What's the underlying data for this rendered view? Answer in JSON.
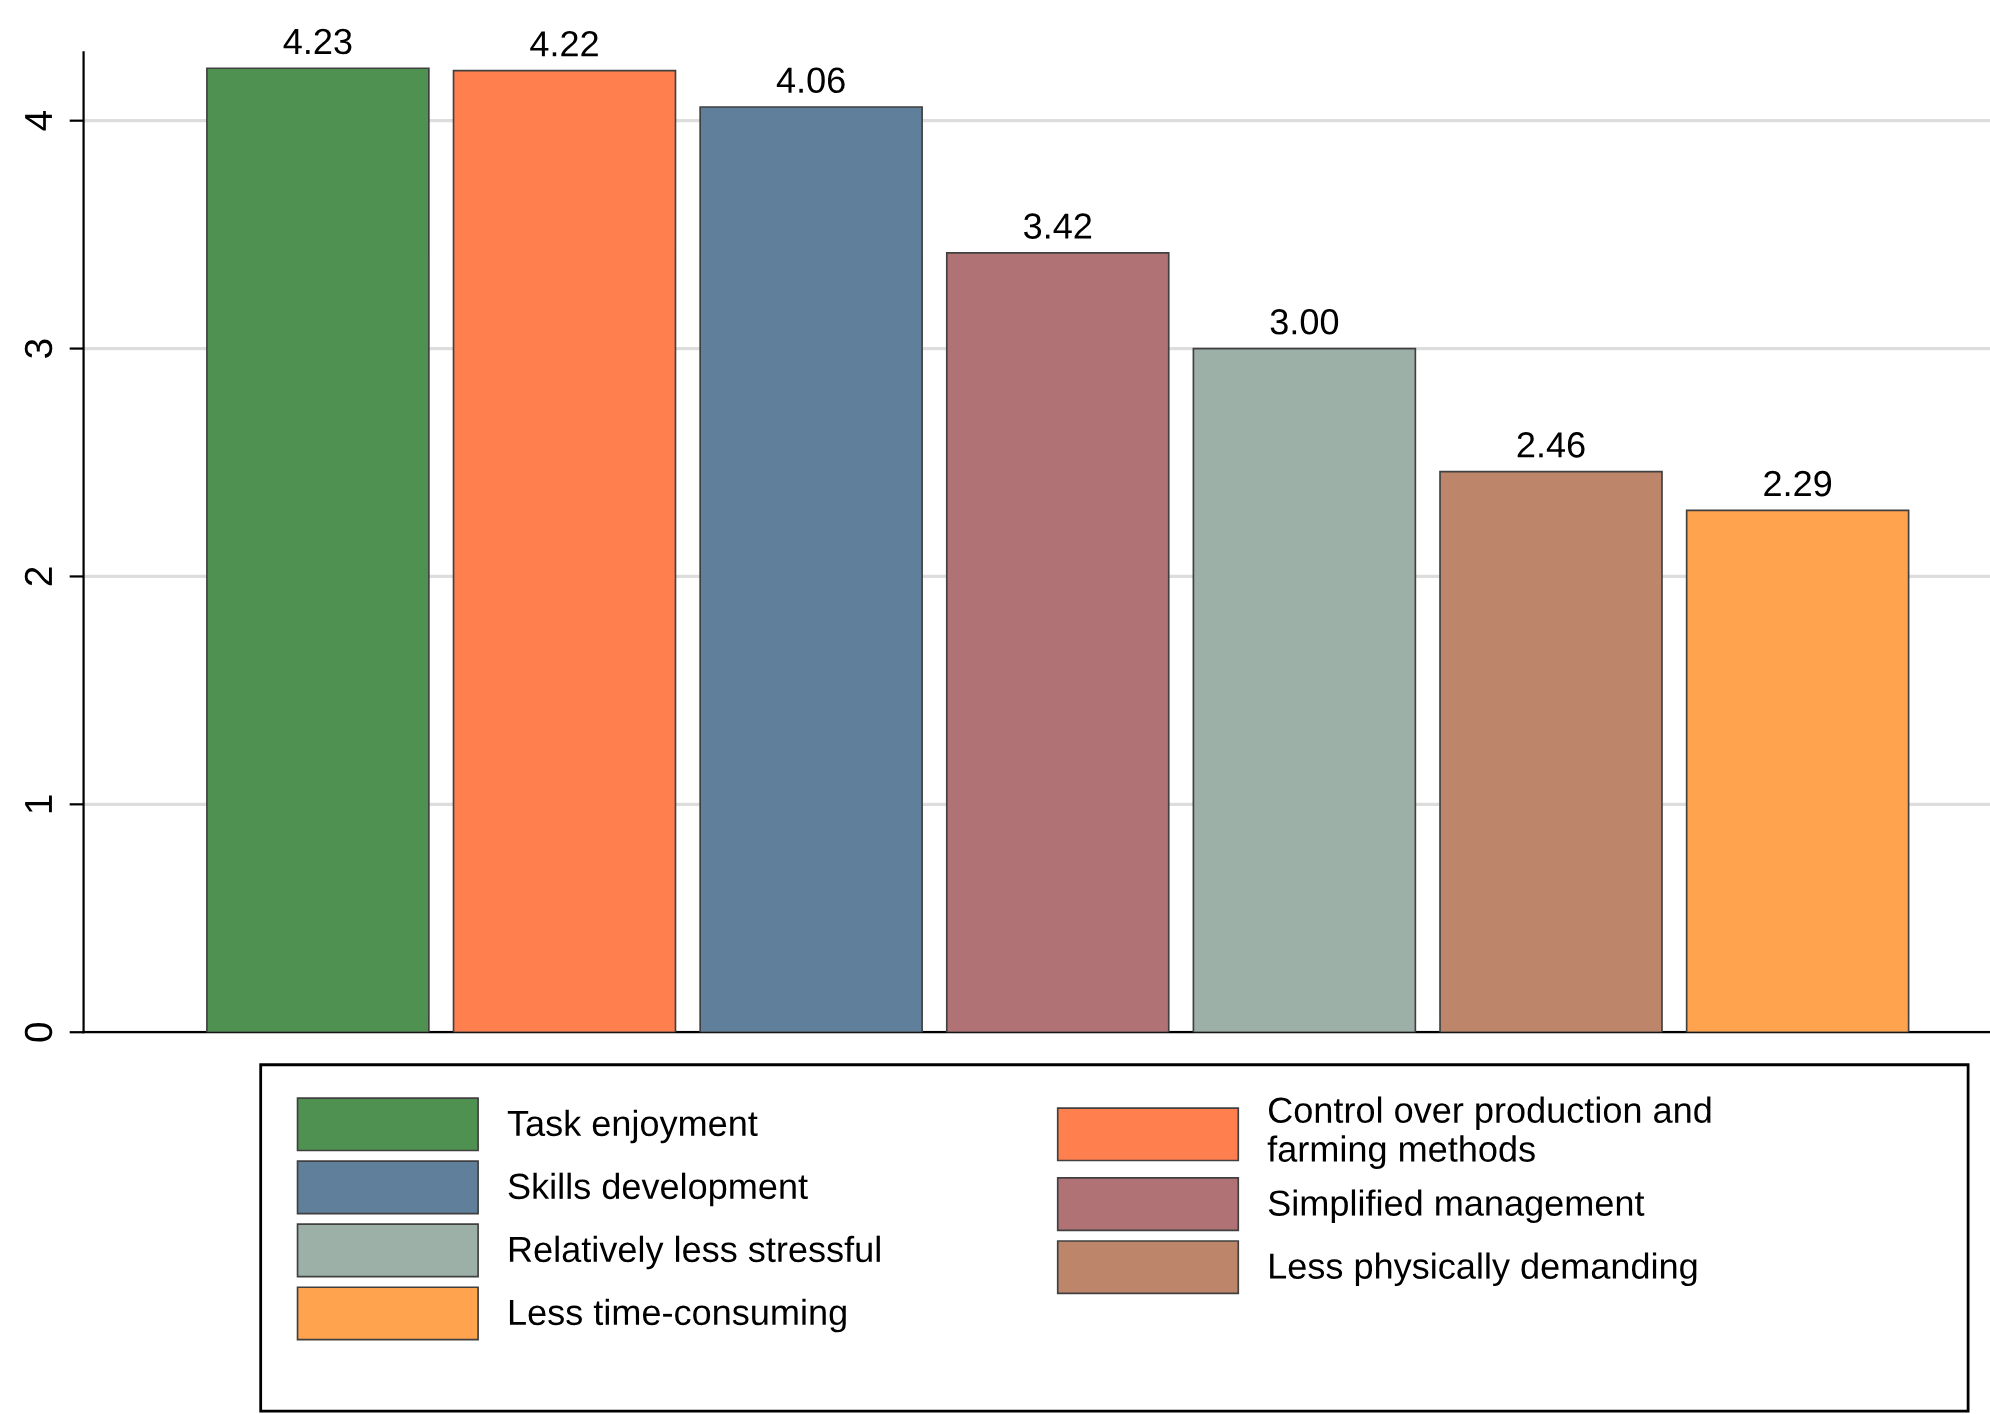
{
  "chart_data": {
    "type": "bar",
    "stacked": true,
    "categories": [
      null,
      null,
      null,
      null,
      null,
      null,
      null
    ],
    "series": [
      {
        "name": "Task enjoyment",
        "color": "#4e9150",
        "values": [
          4.23,
          null,
          null,
          null,
          null,
          null,
          null
        ]
      },
      {
        "name": "Control over production and\nfarming methods",
        "color": "#ff7f4f",
        "values": [
          null,
          4.22,
          null,
          null,
          null,
          null,
          null
        ]
      },
      {
        "name": "Skills development",
        "color": "#5f7f9b",
        "values": [
          null,
          null,
          4.06,
          null,
          null,
          null,
          null
        ]
      },
      {
        "name": "Simplified management",
        "color": "#b07274",
        "values": [
          null,
          null,
          null,
          3.42,
          null,
          null,
          null
        ]
      },
      {
        "name": "Relatively less stressful",
        "color": "#9db0a8",
        "values": [
          null,
          null,
          null,
          null,
          3.0,
          null,
          null
        ]
      },
      {
        "name": "Less physically demanding",
        "color": "#bd866b",
        "values": [
          null,
          null,
          null,
          null,
          null,
          2.46,
          null
        ]
      },
      {
        "name": "Less time-consuming",
        "color": "#ffa34f",
        "values": [
          null,
          null,
          null,
          null,
          null,
          null,
          2.29
        ]
      }
    ],
    "value_labels": [
      "4.23",
      "4.22",
      "4.06",
      "3.42",
      "3.00",
      "2.46",
      "2.29"
    ],
    "ylim": [
      0,
      4.3
    ],
    "yticks": [
      0,
      1,
      2,
      3,
      4
    ],
    "grid": "y",
    "legend": "bottom"
  }
}
